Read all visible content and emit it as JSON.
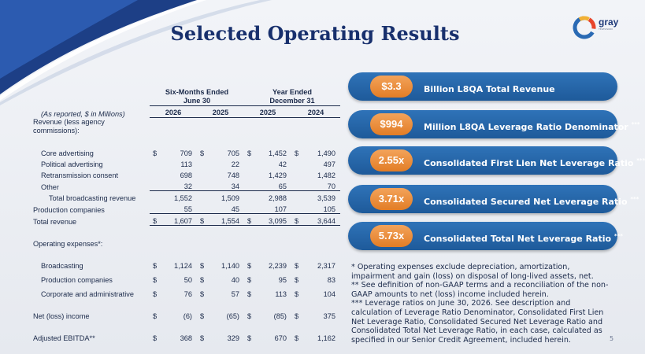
{
  "slide": {
    "title": "Selected Operating Results",
    "page_number": "5",
    "logo": {
      "word": "gray",
      "tagline": "TELEVISION"
    }
  },
  "table": {
    "header_groups": [
      "Six-Months Ended\nJune 30",
      "Year Ended\nDecember 31"
    ],
    "unit_note": "(As reported, $ in Millions)",
    "columns": [
      "2026",
      "2025",
      "2025",
      "2024"
    ],
    "revenue_heading": "Revenue (less agency commissions):",
    "rows": [
      {
        "label": "Core advertising",
        "cur": "$",
        "v": [
          "709",
          "705",
          "1,452",
          "1,490"
        ]
      },
      {
        "label": "Political advertising",
        "cur": "",
        "v": [
          "113",
          "22",
          "42",
          "497"
        ]
      },
      {
        "label": "Retransmission consent",
        "cur": "",
        "v": [
          "698",
          "748",
          "1,429",
          "1,482"
        ]
      },
      {
        "label": "Other",
        "cur": "",
        "v": [
          "32",
          "34",
          "65",
          "70"
        ]
      },
      {
        "label": "Total broadcasting revenue",
        "cur": "",
        "v": [
          "1,552",
          "1,509",
          "2,988",
          "3,539"
        ]
      },
      {
        "label": "Production companies",
        "cur": "",
        "v": [
          "55",
          "45",
          "107",
          "105"
        ]
      },
      {
        "label": "Total revenue",
        "cur": "$",
        "v": [
          "1,607",
          "1,554",
          "3,095",
          "3,644"
        ]
      }
    ],
    "opex_heading": "Operating expenses*:",
    "opex_rows": [
      {
        "label": "Broadcasting",
        "cur": "$",
        "v": [
          "1,124",
          "1,140",
          "2,239",
          "2,317"
        ]
      },
      {
        "label": "Production companies",
        "cur": "$",
        "v": [
          "50",
          "40",
          "95",
          "83"
        ]
      },
      {
        "label": "Corporate and administrative",
        "cur": "$",
        "v": [
          "76",
          "57",
          "113",
          "104"
        ]
      }
    ],
    "net_income": {
      "label": "Net (loss) income",
      "cur": "$",
      "v": [
        "(6)",
        "(65)",
        "(85)",
        "375"
      ]
    },
    "ebitda": {
      "label": "Adjusted EBITDA**",
      "cur": "$",
      "v": [
        "368",
        "329",
        "670",
        "1,162"
      ]
    }
  },
  "metrics": [
    {
      "value": "$3.3",
      "label": "Billion L8QA Total Revenue",
      "mark": ""
    },
    {
      "value": "$994",
      "label": "Million L8QA Leverage Ratio Denominator",
      "mark": "***"
    },
    {
      "value": "2.55x",
      "label": "Consolidated First Lien Net Leverage Ratio",
      "mark": "***"
    },
    {
      "value": "3.71x",
      "label": "Consolidated Secured Net Leverage Ratio",
      "mark": "***"
    },
    {
      "value": "5.73x",
      "label": "Consolidated Total Net Leverage Ratio",
      "mark": "***"
    }
  ],
  "footnotes": [
    "* Operating expenses exclude depreciation, amortization, impairment and gain (loss) on disposal of long-lived assets, net.",
    "** See definition of non-GAAP terms and a reconciliation of the non-GAAP amounts to net (loss) income included herein.",
    "*** Leverage ratios on June 30, 2026. See description and calculation of Leverage Ratio Denominator, Consolidated First Lien Net Leverage Ratio, Consolidated Secured Net Leverage Ratio and Consolidated Total Net Leverage Ratio, in each case, calculated as specified in our Senior Credit Agreement, included herein."
  ],
  "colors": {
    "navy": "#18306d",
    "pill_blue": "#1e5a9a",
    "orange": "#e27d26"
  }
}
